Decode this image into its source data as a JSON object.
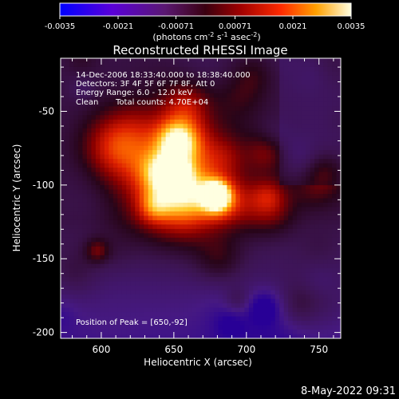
{
  "chart_data": {
    "type": "heatmap",
    "title": "Reconstructed RHESSI Image",
    "xlabel": "Heliocentric X (arcsec)",
    "ylabel": "Heliocentric Y (arcsec)",
    "xlim": [
      572,
      765
    ],
    "ylim": [
      -204,
      -14
    ],
    "x_ticks": [
      600,
      650,
      700,
      750
    ],
    "y_ticks": [
      -50,
      -100,
      -150,
      -200
    ],
    "colorbar": {
      "min": -0.0035,
      "max": 0.0035,
      "ticks": [
        "-0.0035",
        "-0.0021",
        "-0.00071",
        "0.00071",
        "0.0021",
        "0.0035"
      ],
      "unit_label": "(photons cm",
      "unit_sup1": "-2",
      "unit_mid": " s",
      "unit_sup2": "-1",
      "unit_end": " asec",
      "unit_sup3": "-2",
      "unit_close": ")"
    },
    "peak": {
      "x": 650,
      "y": -92
    },
    "colors": {
      "bg": "#000000",
      "text": "#ffffff"
    }
  },
  "info": {
    "time_range": "14-Dec-2006 18:33:40.000 to 18:38:40.000",
    "detectors": "Detectors: 3F 4F 5F 6F 7F 8F, Att 0",
    "energy": "Energy Range: 6.0 - 12.0 keV",
    "clean": "Clean",
    "counts": "Total counts: 4.70E+04",
    "peak_text": "Position of Peak = [650,-92]"
  },
  "footer": {
    "timestamp": "8-May-2022 09:31"
  }
}
